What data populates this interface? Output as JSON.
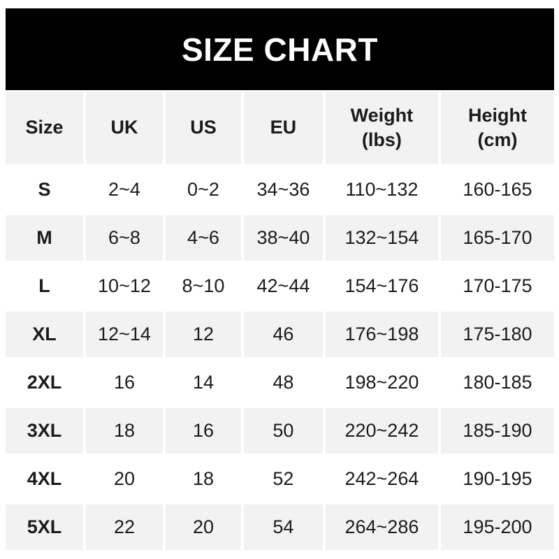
{
  "banner": {
    "title": "SIZE CHART"
  },
  "header": {
    "cells": [
      {
        "line1": "Size"
      },
      {
        "line1": "UK"
      },
      {
        "line1": "US"
      },
      {
        "line1": "EU"
      },
      {
        "line1": "Weight",
        "line2": "(lbs)"
      },
      {
        "line1": "Height",
        "line2": "(cm)"
      }
    ]
  },
  "chart_data": {
    "type": "table",
    "title": "SIZE CHART",
    "columns": [
      "Size",
      "UK",
      "US",
      "EU",
      "Weight (lbs)",
      "Height (cm)"
    ],
    "rows": [
      [
        "S",
        "2~4",
        "0~2",
        "34~36",
        "110~132",
        "160-165"
      ],
      [
        "M",
        "6~8",
        "4~6",
        "38~40",
        "132~154",
        "165-170"
      ],
      [
        "L",
        "10~12",
        "8~10",
        "42~44",
        "154~176",
        "170-175"
      ],
      [
        "XL",
        "12~14",
        "12",
        "46",
        "176~198",
        "175-180"
      ],
      [
        "2XL",
        "16",
        "14",
        "48",
        "198~220",
        "180-185"
      ],
      [
        "3XL",
        "18",
        "16",
        "50",
        "220~242",
        "185-190"
      ],
      [
        "4XL",
        "20",
        "18",
        "52",
        "242~264",
        "190-195"
      ],
      [
        "5XL",
        "22",
        "20",
        "54",
        "264~286",
        "195-200"
      ]
    ],
    "layout": {
      "row_stripe_colors": [
        "#ffffff",
        "#f2f2f2"
      ],
      "header_background": "#f2f2f2",
      "grid_gap_color": "#ffffff"
    }
  },
  "colors": {
    "banner_background": "#000000",
    "banner_text": "#ffffff",
    "stripe_gray": "#f2f2f2",
    "text": "#1b1b1b"
  }
}
